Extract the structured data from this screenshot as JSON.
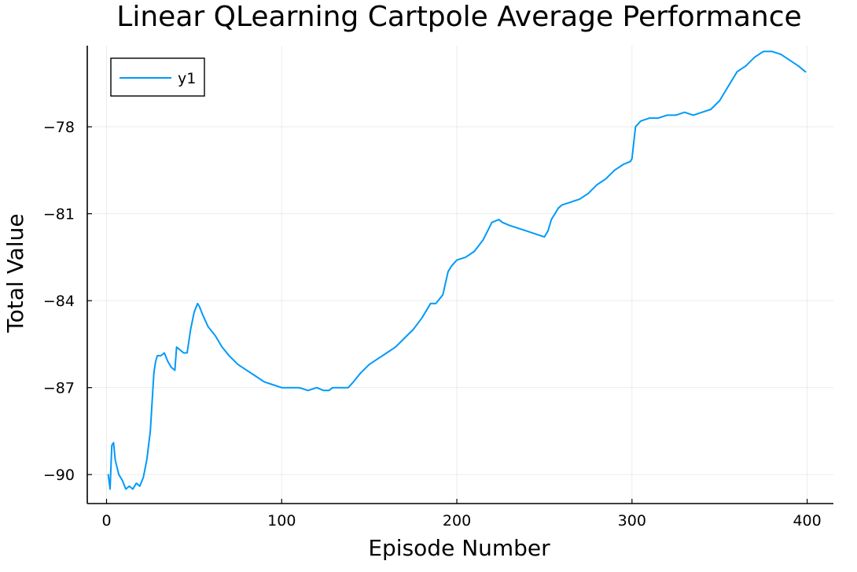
{
  "chart_data": {
    "type": "line",
    "title": "Linear QLearning Cartpole Average Performance",
    "xlabel": "Episode Number",
    "ylabel": "Total Value",
    "xlim": [
      -11,
      415
    ],
    "ylim": [
      -91.0,
      -75.2
    ],
    "x_ticks": [
      0,
      100,
      200,
      300,
      400
    ],
    "x_tick_labels": [
      "0",
      "100",
      "200",
      "300",
      "400"
    ],
    "y_ticks": [
      -90,
      -87,
      -84,
      -81,
      -78
    ],
    "y_tick_labels": [
      "−90",
      "−87",
      "−84",
      "−81",
      "−78"
    ],
    "grid": true,
    "legend": {
      "position": "top-left",
      "entries": [
        "y1"
      ]
    },
    "series": [
      {
        "name": "y1",
        "color": "#009af9",
        "x": [
          1,
          2,
          3,
          4,
          5,
          7,
          9,
          11,
          13,
          15,
          17,
          19,
          21,
          23,
          25,
          27,
          28,
          29,
          31,
          33,
          35,
          37,
          39,
          40,
          42,
          44,
          46,
          48,
          50,
          52,
          53,
          55,
          58,
          62,
          66,
          70,
          75,
          80,
          85,
          90,
          95,
          100,
          105,
          110,
          115,
          120,
          124,
          127,
          129,
          131,
          135,
          138,
          141,
          145,
          150,
          155,
          160,
          165,
          170,
          175,
          180,
          185,
          188,
          192,
          195,
          197,
          200,
          205,
          210,
          215,
          220,
          224,
          226,
          230,
          235,
          240,
          245,
          250,
          252,
          254,
          256,
          258,
          260,
          265,
          270,
          275,
          280,
          285,
          290,
          295,
          299,
          300,
          302,
          305,
          310,
          315,
          320,
          325,
          330,
          335,
          340,
          345,
          350,
          355,
          360,
          365,
          370,
          375,
          380,
          385,
          390,
          395,
          399
        ],
        "values": [
          -90.0,
          -90.5,
          -89.0,
          -88.9,
          -89.5,
          -90.0,
          -90.2,
          -90.5,
          -90.4,
          -90.5,
          -90.3,
          -90.4,
          -90.1,
          -89.5,
          -88.5,
          -86.5,
          -86.1,
          -85.9,
          -85.9,
          -85.8,
          -86.1,
          -86.3,
          -86.4,
          -85.6,
          -85.7,
          -85.8,
          -85.8,
          -85.0,
          -84.4,
          -84.1,
          -84.2,
          -84.5,
          -84.9,
          -85.2,
          -85.6,
          -85.9,
          -86.2,
          -86.4,
          -86.6,
          -86.8,
          -86.9,
          -87.0,
          -87.0,
          -87.0,
          -87.1,
          -87.0,
          -87.1,
          -87.1,
          -87.0,
          -87.0,
          -87.0,
          -87.0,
          -86.8,
          -86.5,
          -86.2,
          -86.0,
          -85.8,
          -85.6,
          -85.3,
          -85.0,
          -84.6,
          -84.1,
          -84.1,
          -83.8,
          -83.0,
          -82.8,
          -82.6,
          -82.5,
          -82.3,
          -81.9,
          -81.3,
          -81.2,
          -81.3,
          -81.4,
          -81.5,
          -81.6,
          -81.7,
          -81.8,
          -81.6,
          -81.2,
          -81.0,
          -80.8,
          -80.7,
          -80.6,
          -80.5,
          -80.3,
          -80.0,
          -79.8,
          -79.5,
          -79.3,
          -79.2,
          -79.1,
          -78.0,
          -77.8,
          -77.7,
          -77.7,
          -77.6,
          -77.6,
          -77.5,
          -77.6,
          -77.5,
          -77.4,
          -77.1,
          -76.6,
          -76.1,
          -75.9,
          -75.6,
          -75.4,
          -75.4,
          -75.5,
          -75.7,
          -75.9,
          -76.1
        ]
      }
    ]
  }
}
